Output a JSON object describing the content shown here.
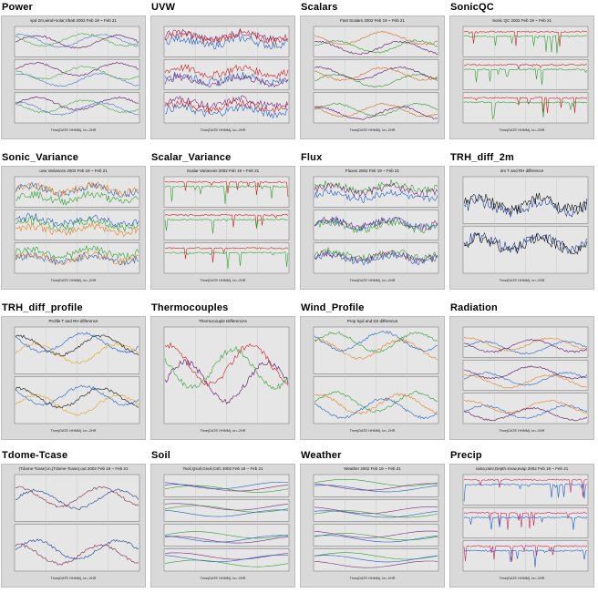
{
  "thumbnails": [
    {
      "key": "power",
      "label": "Power",
      "plot_title": "spd 2m,wind+solar,Vbatt 2002 Feb 19 ~ Feb 21",
      "panels": 3,
      "colors": [
        "#5a1060",
        "#4a78c8",
        "#4aa84a"
      ],
      "style": "lines"
    },
    {
      "key": "uvw",
      "label": "UVW",
      "plot_title": "",
      "panels": 3,
      "colors": [
        "#2060c0",
        "#7a2a7a",
        "#c82020",
        "#30a030",
        "#e08020"
      ],
      "style": "noisy"
    },
    {
      "key": "scalars",
      "label": "Scalars",
      "plot_title": "Fast Scalars 2002 Feb 19 ~ Feb 21",
      "panels": 3,
      "colors": [
        "#2a9a2a",
        "#5a1060",
        "#d06a20",
        "#2060c0"
      ],
      "style": "lines"
    },
    {
      "key": "sonicqc",
      "label": "SonicQC",
      "plot_title": "Sonic QC 2002 Feb 19 ~ Feb 21",
      "panels": 3,
      "colors": [
        "#c82020",
        "#30a030",
        "#2060c0",
        "#e08020"
      ],
      "style": "spikes"
    },
    {
      "key": "sonic_variance",
      "label": "Sonic_Variance",
      "plot_title": "uvw Variances 2002 Feb 19 ~ Feb 21",
      "panels": 3,
      "colors": [
        "#2060c0",
        "#30a030",
        "#e08020",
        "#7a2a7a"
      ],
      "style": "noisy"
    },
    {
      "key": "scalar_variance",
      "label": "Scalar_Variance",
      "plot_title": "Scalar Variances 2002 Feb 19 ~ Feb 21",
      "panels": 3,
      "colors": [
        "#c82020",
        "#30a030",
        "#2060c0",
        "#e0a020"
      ],
      "style": "spikes"
    },
    {
      "key": "flux",
      "label": "Flux",
      "plot_title": "Fluxes 2002 Feb 19 ~ Feb 21",
      "panels": 3,
      "colors": [
        "#2060c0",
        "#30a030",
        "#7a2a7a",
        "#e08020"
      ],
      "style": "noisy"
    },
    {
      "key": "trh_diff_2m",
      "label": "TRH_diff_2m",
      "plot_title": "2m T and RH difference",
      "panels": 2,
      "colors": [
        "#1a3a8a",
        "#111111"
      ],
      "style": "noisy"
    },
    {
      "key": "trh_diff_profile",
      "label": "TRH_diff_profile",
      "plot_title": "Profile T and RH difference",
      "panels": 2,
      "colors": [
        "#e0a020",
        "#111111",
        "#2060c0",
        "#30a030"
      ],
      "style": "lines"
    },
    {
      "key": "thermocouples",
      "label": "Thermocouples",
      "plot_title": "Thermocouple Differences",
      "panels": 1,
      "colors": [
        "#5a1060",
        "#c82020",
        "#30a030",
        "#2060c0",
        "#e08020"
      ],
      "style": "lines"
    },
    {
      "key": "wind_profile",
      "label": "Wind_Profile",
      "plot_title": "Prop Spd and Dir difference",
      "panels": 2,
      "colors": [
        "#2a9a2a",
        "#e08020",
        "#2060c0",
        "#111111"
      ],
      "style": "lines"
    },
    {
      "key": "radiation",
      "label": "Radiation",
      "plot_title": "",
      "panels": 3,
      "colors": [
        "#2060c0",
        "#e08020",
        "#5a1060",
        "#30a030"
      ],
      "style": "lines"
    },
    {
      "key": "tdome_tcase",
      "label": "Tdome-Tcase",
      "plot_title": "(Tdome-Tcase).in,(Tdome-Tcase).out 2002 Feb 19 ~ Feb 21",
      "panels": 2,
      "colors": [
        "#1a3a8a",
        "#7a2a4a"
      ],
      "style": "lines"
    },
    {
      "key": "soil",
      "label": "Soil",
      "plot_title": "Tsoil,Qsoil,Gsoil,Csfc 2002 Feb 19 ~ Feb 21",
      "panels": 4,
      "colors": [
        "#30a030",
        "#7a2a7a",
        "#2060c0"
      ],
      "style": "smooth"
    },
    {
      "key": "weather",
      "label": "Weather",
      "plot_title": "Weather 2002 Feb 19 ~ Feb 21",
      "panels": 4,
      "colors": [
        "#30a030",
        "#2060c0",
        "#7a2a7a",
        "#e08020"
      ],
      "style": "smooth"
    },
    {
      "key": "precip",
      "label": "Precip",
      "plot_title": "raina,rainr,Depth.snow,evap 2002 Feb 19 ~ Feb 21",
      "panels": 3,
      "colors": [
        "#c82060",
        "#2060c0",
        "#30a030",
        "#7a2a7a"
      ],
      "style": "spikes"
    }
  ],
  "common": {
    "axis_footer": "Time(DATE HHMM), tz=-2HR"
  }
}
